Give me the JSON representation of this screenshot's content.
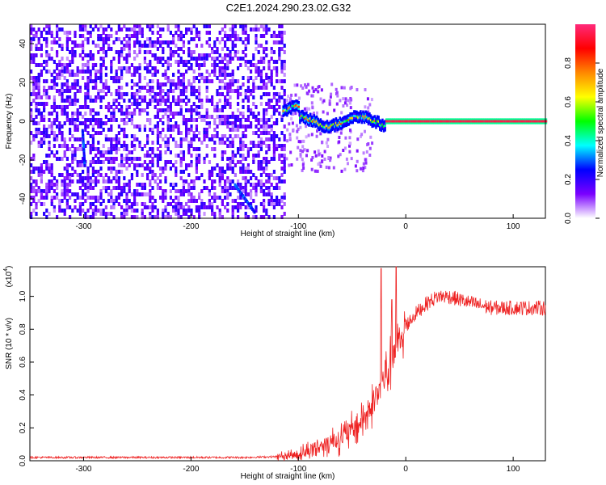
{
  "title": "C2E1.2024.290.23.02.G32",
  "chart_data": [
    {
      "type": "heatmap",
      "xlabel": "Height of straight line (km)",
      "ylabel": "Frequency (Hz)",
      "xlim": [
        -350,
        130
      ],
      "ylim": [
        -50,
        50
      ],
      "xticks": [
        -300,
        -200,
        -100,
        0,
        100
      ],
      "xtick_labels": [
        "-300",
        "-200",
        "-100",
        "0",
        "100"
      ],
      "yticks": [
        -40,
        -20,
        0,
        20,
        40
      ],
      "ytick_labels": [
        "-40",
        "-20",
        "0",
        "20",
        "40"
      ],
      "colorbar": {
        "label": "Normalized spectral amplitude",
        "range": [
          0,
          1
        ],
        "ticks": [
          0.0,
          0.2,
          0.4,
          0.6,
          0.8
        ],
        "tick_labels": [
          "0.0",
          "0.2",
          "0.4",
          "0.6",
          "0.8"
        ],
        "colors": [
          "#ffffff",
          "#7a00ff",
          "#0000ff",
          "#00ffff",
          "#00ff00",
          "#ffff00",
          "#ff8800",
          "#ff0000",
          "#ff2a7a"
        ]
      },
      "features": {
        "noise_region_x": [
          -350,
          -112
        ],
        "carrier_line": {
          "x_start": -115,
          "x_end": 130,
          "frequency": 0,
          "amplitude": 1.0
        },
        "carrier_wobble_x": [
          -115,
          -20
        ],
        "streaks": [
          {
            "x": [
              -160,
              -142
            ],
            "y": [
              -32,
              -46
            ]
          },
          {
            "x": [
              -302,
              -300
            ],
            "y": [
              -4,
              -22
            ]
          }
        ]
      },
      "grid": false
    },
    {
      "type": "line",
      "xlabel": "Height of straight line (km)",
      "ylabel": "SNR (10 * v/v)",
      "yscale_label": "(x10",
      "yscale_exponent": "4",
      "xlim": [
        -350,
        130
      ],
      "ylim": [
        0,
        1.18
      ],
      "xticks": [
        -300,
        -200,
        -100,
        0,
        100
      ],
      "xtick_labels": [
        "-300",
        "-200",
        "-100",
        "0",
        "100"
      ],
      "yticks": [
        0.0,
        0.2,
        0.4,
        0.6,
        0.8,
        1.0
      ],
      "ytick_labels": [
        "0.0",
        "0.2",
        "0.4",
        "0.6",
        "0.8",
        "1.0"
      ],
      "series": [
        {
          "color": "#ee2222",
          "x": [
            -350,
            -300,
            -250,
            -200,
            -150,
            -120,
            -100,
            -80,
            -60,
            -50,
            -40,
            -30,
            -25,
            -20,
            -15,
            -10,
            -5,
            0,
            10,
            20,
            30,
            40,
            60,
            80,
            100,
            120,
            130
          ],
          "values": [
            0.02,
            0.02,
            0.02,
            0.02,
            0.02,
            0.025,
            0.04,
            0.09,
            0.14,
            0.18,
            0.25,
            0.35,
            0.42,
            0.5,
            0.58,
            0.65,
            0.72,
            0.82,
            0.9,
            0.96,
            1.0,
            1.0,
            0.96,
            0.93,
            0.93,
            0.93,
            0.93
          ],
          "spikes": [
            {
              "x": -23,
              "value": 1.17
            },
            {
              "x": -9,
              "value": 1.18
            },
            {
              "x": -13,
              "value": 0.98
            }
          ]
        }
      ],
      "grid": false
    }
  ]
}
